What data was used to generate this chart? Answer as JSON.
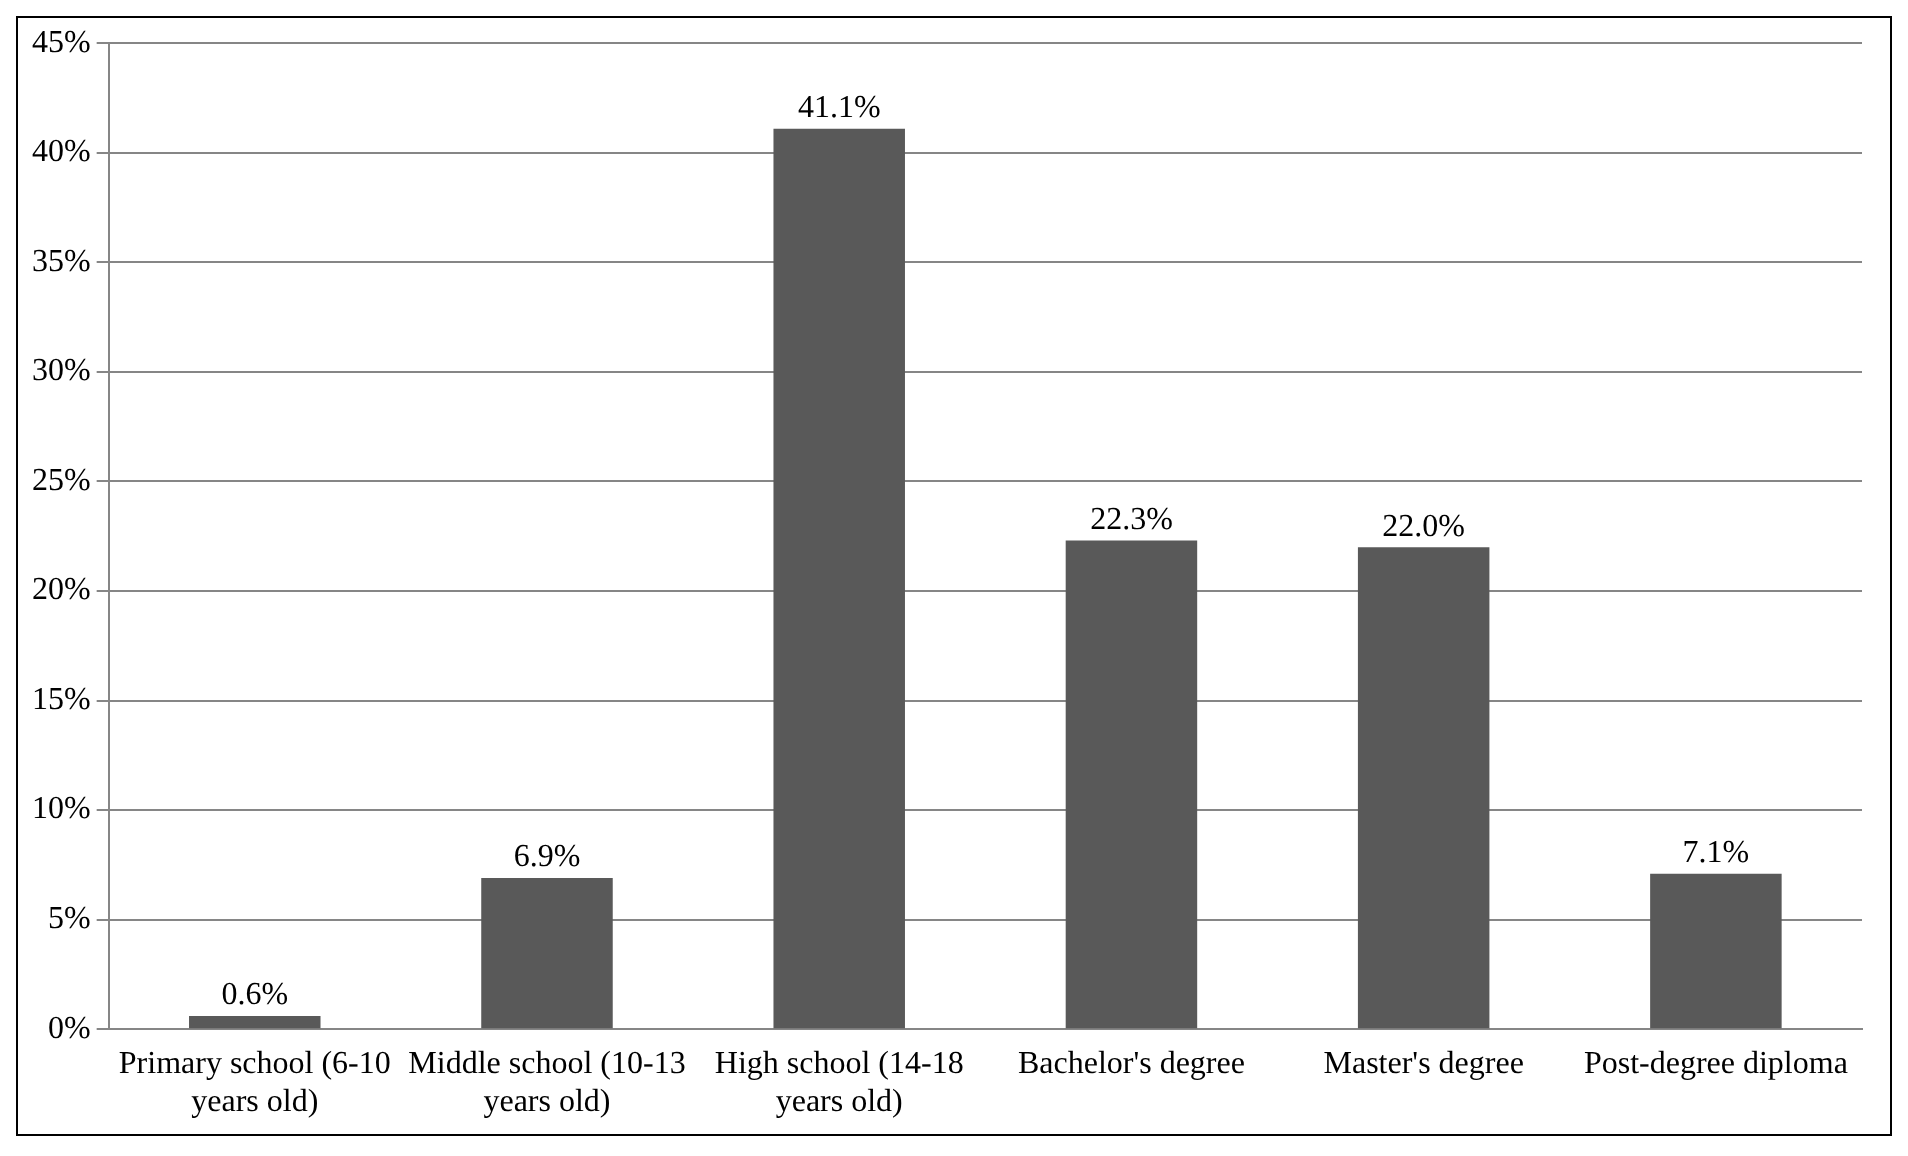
{
  "chart_data": {
    "type": "bar",
    "categories": [
      "Primary school (6-10 years old)",
      "Middle school (10-13 years old)",
      "High school (14-18 years old)",
      "Bachelor's degree",
      "Master's degree",
      "Post-degree diploma"
    ],
    "values": [
      0.6,
      6.9,
      41.1,
      22.3,
      22.0,
      7.1
    ],
    "value_labels": [
      "0.6%",
      "6.9%",
      "41.1%",
      "22.3%",
      "22.0%",
      "7.1%"
    ],
    "color": "#595959",
    "ylim": [
      0,
      45
    ],
    "yticks": [
      {
        "value": 0,
        "label": "0%"
      },
      {
        "value": 5,
        "label": "5%"
      },
      {
        "value": 10,
        "label": "10%"
      },
      {
        "value": 15,
        "label": "15%"
      },
      {
        "value": 20,
        "label": "20%"
      },
      {
        "value": 25,
        "label": "25%"
      },
      {
        "value": 30,
        "label": "30%"
      },
      {
        "value": 35,
        "label": "35%"
      },
      {
        "value": 40,
        "label": "40%"
      },
      {
        "value": 45,
        "label": "45%"
      }
    ],
    "grid": "y",
    "legend": false
  }
}
